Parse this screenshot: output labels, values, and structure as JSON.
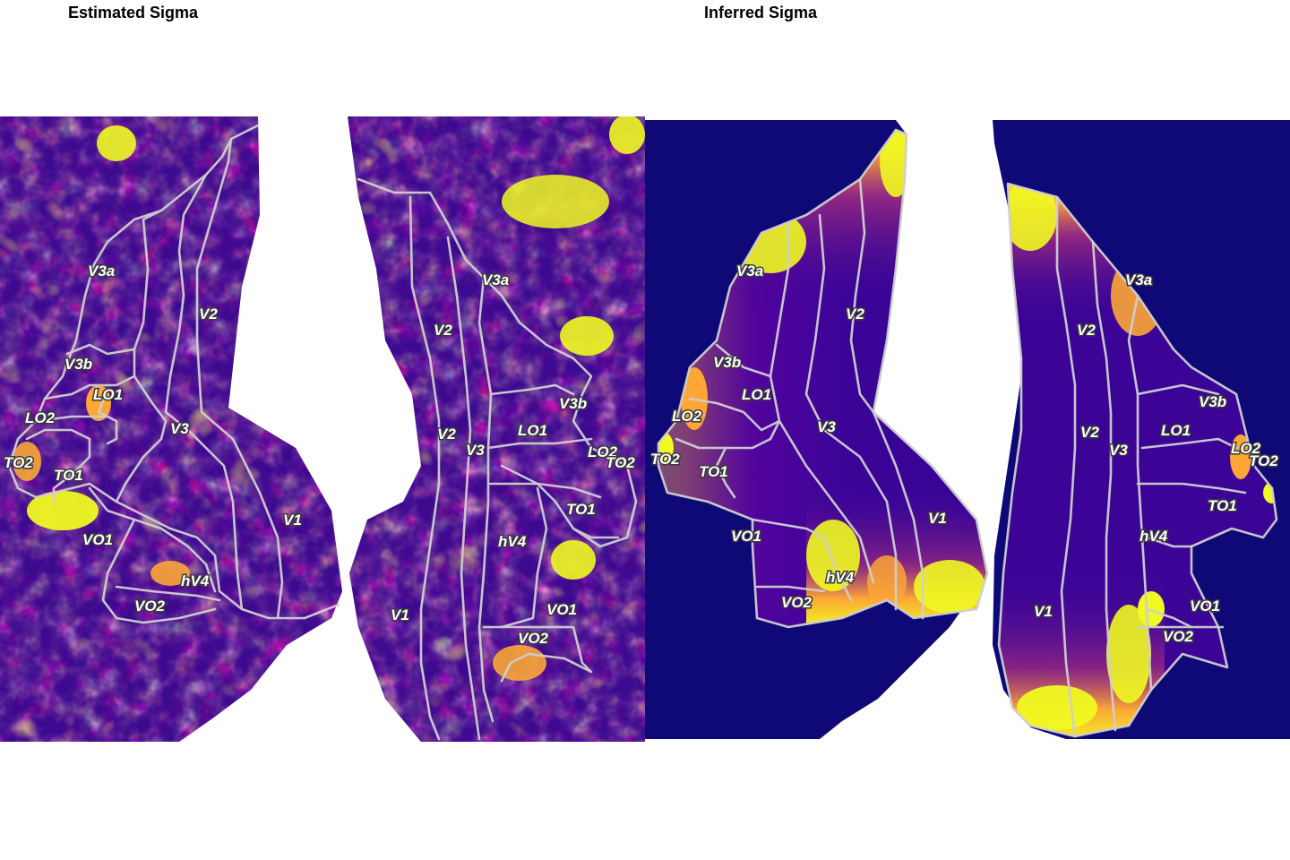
{
  "panels": [
    {
      "title": "Estimated Sigma",
      "hemispheres": [
        {
          "labels": [
            "V3a",
            "V2",
            "V3b",
            "LO1",
            "LO2",
            "V3",
            "TO2",
            "TO1",
            "V1",
            "VO1",
            "hV4",
            "VO2"
          ]
        },
        {
          "labels": [
            "V3a",
            "V2",
            "V3b",
            "LO1",
            "V2",
            "V3",
            "LO2",
            "TO2",
            "TO1",
            "hV4",
            "V1",
            "VO1",
            "VO2"
          ]
        }
      ]
    },
    {
      "title": "Inferred Sigma",
      "hemispheres": [
        {
          "labels": [
            "V3a",
            "V2",
            "V3b",
            "LO1",
            "LO2",
            "V3",
            "TO2",
            "TO1",
            "V1",
            "VO1",
            "hV4",
            "VO2"
          ]
        },
        {
          "labels": [
            "V3a",
            "V2",
            "V3b",
            "LO1",
            "V2",
            "V3",
            "LO2",
            "TO2",
            "TO1",
            "hV4",
            "V1",
            "VO1",
            "VO2"
          ]
        }
      ]
    }
  ],
  "colors": {
    "background": "#ffffff",
    "colormap": [
      "#0d0887",
      "#4b03a1",
      "#7d03a8",
      "#b63679",
      "#e16462",
      "#fca636",
      "#f0f921"
    ],
    "boundary": "#cfcfcf"
  }
}
